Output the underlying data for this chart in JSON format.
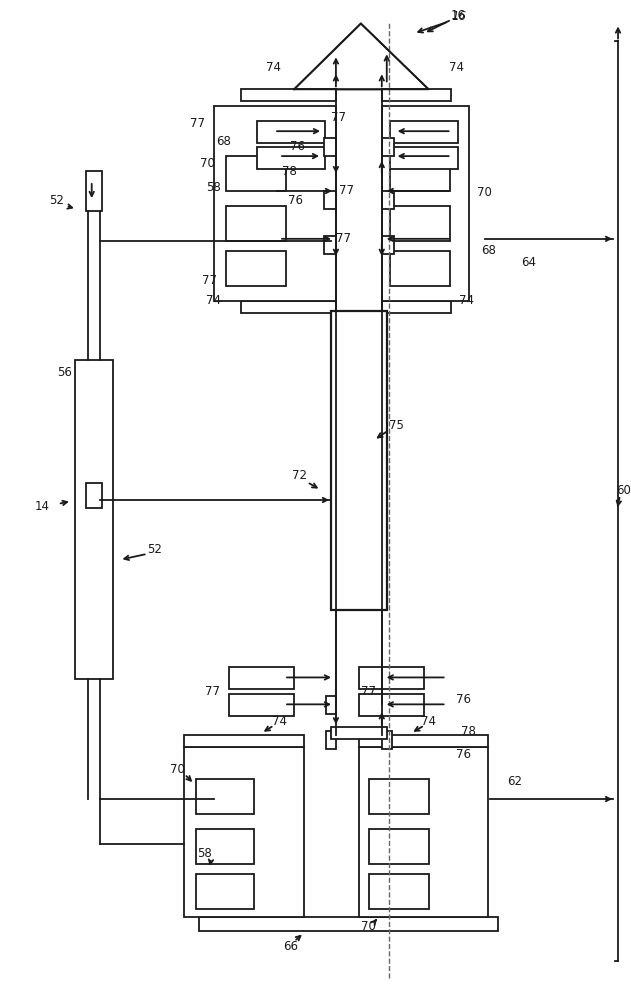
{
  "bg_color": "#ffffff",
  "lc": "#1a1a1a",
  "lw": 1.3,
  "fig_width": 6.31,
  "fig_height": 10.0,
  "dpi": 100,
  "fs": 8.5
}
